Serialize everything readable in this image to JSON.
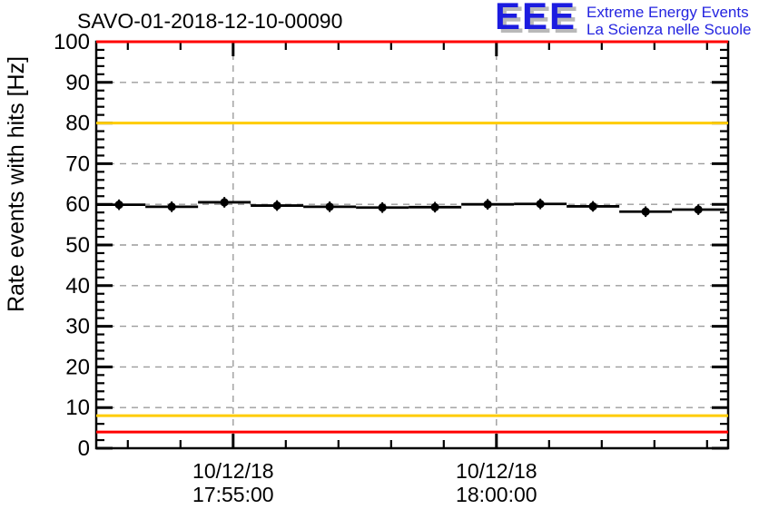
{
  "header": {
    "title": "SAVO-01-2018-12-10-00090"
  },
  "logo": {
    "acronym": "EEE",
    "line1": "Extreme Energy Events",
    "line2": "La Scienza nelle Scuole",
    "text_color": "#1c1ce0",
    "shadow_color": "#b9b9b9"
  },
  "chart_data": {
    "type": "line",
    "title": "SAVO-01-2018-12-10-00090",
    "xlabel": "",
    "ylabel": "Rate events with hits [Hz]",
    "ylim": [
      0,
      100
    ],
    "y_major_tick_step": 10,
    "y_minor_tick_step": 2,
    "grid": true,
    "legend": "none",
    "x_range": [
      "17:52:24",
      "18:04:24"
    ],
    "x_major_ticks": [
      {
        "time": "17:55:00",
        "label_lines": [
          "10/12/18",
          "17:55:00"
        ]
      },
      {
        "time": "18:00:00",
        "label_lines": [
          "10/12/18",
          "18:00:00"
        ]
      }
    ],
    "x_minor_tick_seconds": 60,
    "threshold_lines": [
      {
        "hz": 100,
        "color": "#ff0000"
      },
      {
        "hz": 80,
        "color": "#ffcc00"
      },
      {
        "hz": 8,
        "color": "#ffcc00"
      },
      {
        "hz": 4,
        "color": "#ff0000"
      }
    ],
    "series": [
      {
        "name": "rate-events-with-hits",
        "color": "#000000",
        "marker": "filled-circle",
        "xerr_seconds": 30,
        "yerr_hz": 1.3,
        "points": [
          {
            "time": "17:52:50",
            "hz": 59.9
          },
          {
            "time": "17:53:50",
            "hz": 59.4
          },
          {
            "time": "17:54:50",
            "hz": 60.5
          },
          {
            "time": "17:55:50",
            "hz": 59.7
          },
          {
            "time": "17:56:50",
            "hz": 59.4
          },
          {
            "time": "17:57:50",
            "hz": 59.2
          },
          {
            "time": "17:58:50",
            "hz": 59.3
          },
          {
            "time": "17:59:50",
            "hz": 60.0
          },
          {
            "time": "18:00:50",
            "hz": 60.1
          },
          {
            "time": "18:01:50",
            "hz": 59.5
          },
          {
            "time": "18:02:50",
            "hz": 58.2
          },
          {
            "time": "18:03:50",
            "hz": 58.7
          }
        ]
      }
    ],
    "colors": {
      "grid": "#9c9c9c",
      "frame": "#000000",
      "alarm_red": "#ff0000",
      "warn_yellow": "#ffcc00"
    }
  }
}
